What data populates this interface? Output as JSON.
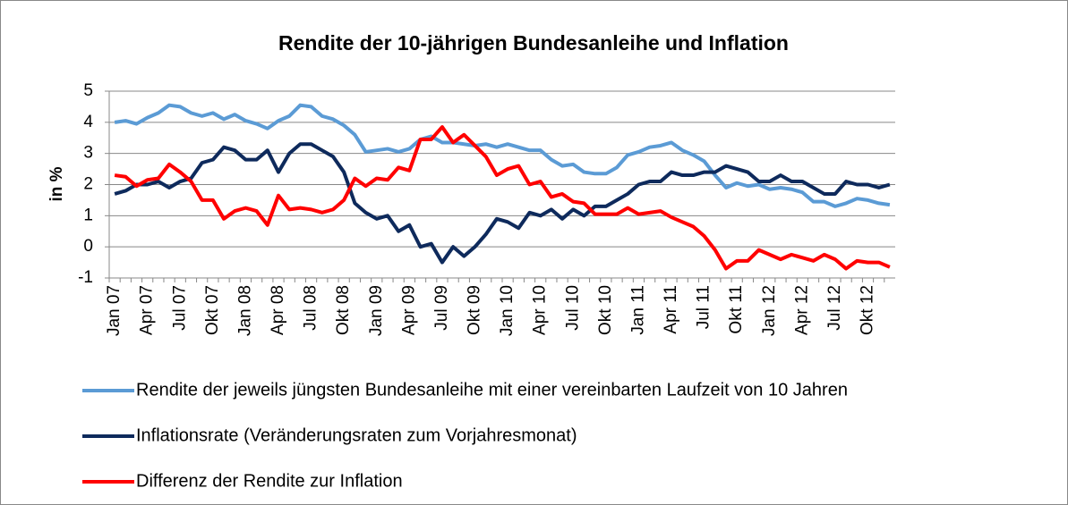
{
  "chart_data": {
    "type": "line",
    "title": "Rendite der 10-jährigen Bundesanleihe und Inflation",
    "y_label": "in %",
    "categories": [
      "Jan 07",
      null,
      null,
      "Apr 07",
      null,
      null,
      "Jul 07",
      null,
      null,
      "Okt 07",
      null,
      null,
      "Jan 08",
      null,
      null,
      "Apr 08",
      null,
      null,
      "Jul 08",
      null,
      null,
      "Okt 08",
      null,
      null,
      "Jan 09",
      null,
      null,
      "Apr 09",
      null,
      null,
      "Jul 09",
      null,
      null,
      "Okt 09",
      null,
      null,
      "Jan 10",
      null,
      null,
      "Apr 10",
      null,
      null,
      "Jul 10",
      null,
      null,
      "Okt 10",
      null,
      null,
      "Jan 11",
      null,
      null,
      "Apr 11",
      null,
      null,
      "Jul 11",
      null,
      null,
      "Okt 11",
      null,
      null,
      "Jan 12",
      null,
      null,
      "Apr 12",
      null,
      null,
      "Jul 12",
      null,
      null,
      "Okt 12",
      null,
      null
    ],
    "series": [
      {
        "name": "Rendite der jeweils jüngsten Bundesanleihe mit einer vereinbarten Laufzeit von 10 Jahren",
        "color": "#5b9bd5",
        "values": [
          4.0,
          4.05,
          3.95,
          4.15,
          4.3,
          4.55,
          4.5,
          4.3,
          4.2,
          4.3,
          4.1,
          4.25,
          4.05,
          3.95,
          3.8,
          4.05,
          4.2,
          4.55,
          4.5,
          4.2,
          4.1,
          3.9,
          3.6,
          3.05,
          3.1,
          3.15,
          3.05,
          3.15,
          3.45,
          3.55,
          3.35,
          3.35,
          3.3,
          3.25,
          3.3,
          3.2,
          3.3,
          3.2,
          3.1,
          3.1,
          2.8,
          2.6,
          2.65,
          2.4,
          2.35,
          2.35,
          2.55,
          2.95,
          3.05,
          3.2,
          3.25,
          3.35,
          3.1,
          2.95,
          2.75,
          2.3,
          1.9,
          2.05,
          1.95,
          2.0,
          1.85,
          1.9,
          1.85,
          1.75,
          1.45,
          1.45,
          1.3,
          1.4,
          1.55,
          1.5,
          1.4,
          1.35
        ]
      },
      {
        "name": "Inflationsrate (Veränderungsraten zum Vorjahresmonat)",
        "color": "#0e2a5c",
        "values": [
          1.7,
          1.8,
          2.0,
          2.0,
          2.1,
          1.9,
          2.1,
          2.2,
          2.7,
          2.8,
          3.2,
          3.1,
          2.8,
          2.8,
          3.1,
          2.4,
          3.0,
          3.3,
          3.3,
          3.1,
          2.9,
          2.4,
          1.4,
          1.1,
          0.9,
          1.0,
          0.5,
          0.7,
          0.0,
          0.1,
          -0.5,
          0.0,
          -0.3,
          0.0,
          0.4,
          0.9,
          0.8,
          0.6,
          1.1,
          1.0,
          1.2,
          0.9,
          1.2,
          1.0,
          1.3,
          1.3,
          1.5,
          1.7,
          2.0,
          2.1,
          2.1,
          2.4,
          2.3,
          2.3,
          2.4,
          2.4,
          2.6,
          2.5,
          2.4,
          2.1,
          2.1,
          2.3,
          2.1,
          2.1,
          1.9,
          1.7,
          1.7,
          2.1,
          2.0,
          2.0,
          1.9,
          2.0
        ]
      },
      {
        "name": "Differenz der Rendite zur Inflation",
        "color": "#ff0000",
        "values": [
          2.3,
          2.25,
          1.95,
          2.15,
          2.2,
          2.65,
          2.4,
          2.1,
          1.5,
          1.5,
          0.9,
          1.15,
          1.25,
          1.15,
          0.7,
          1.65,
          1.2,
          1.25,
          1.2,
          1.1,
          1.2,
          1.5,
          2.2,
          1.95,
          2.2,
          2.15,
          2.55,
          2.45,
          3.45,
          3.45,
          3.85,
          3.35,
          3.6,
          3.25,
          2.9,
          2.3,
          2.5,
          2.6,
          2.0,
          2.1,
          1.6,
          1.7,
          1.45,
          1.4,
          1.05,
          1.05,
          1.05,
          1.25,
          1.05,
          1.1,
          1.15,
          0.95,
          0.8,
          0.65,
          0.35,
          -0.1,
          -0.7,
          -0.45,
          -0.45,
          -0.1,
          -0.25,
          -0.4,
          -0.25,
          -0.35,
          -0.45,
          -0.25,
          -0.4,
          -0.7,
          -0.45,
          -0.5,
          -0.5,
          -0.65
        ]
      }
    ],
    "ylim": [
      -1,
      5
    ],
    "yticks": [
      -1,
      0,
      1,
      2,
      3,
      4,
      5
    ],
    "grid": true,
    "legend": "bottom"
  }
}
